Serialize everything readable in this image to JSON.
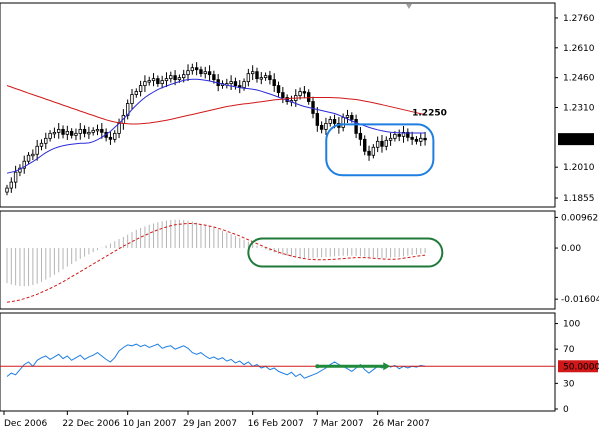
{
  "colors": {
    "ma_fast": "#2a2ad8",
    "ma_slow": "#d01818",
    "candle": "#000000",
    "macd_hist": "#b4b4b4",
    "macd_signal": "#d01818",
    "rsi_line": "#1e7fe0",
    "rsi_level": "#d01818",
    "price_highlight": "#1e7fe0",
    "macd_highlight": "#1f7a3a",
    "rsi_arrow": "#1f8a3a"
  },
  "chart_data": [
    {
      "type": "candlestick",
      "panel": "price",
      "ylim": [
        1.182,
        1.282
      ],
      "y_ticks": [
        {
          "value": 1.276,
          "label": "1.2760"
        },
        {
          "value": 1.261,
          "label": "1.2610"
        },
        {
          "value": 1.246,
          "label": "1.2460"
        },
        {
          "value": 1.231,
          "label": "1.2310"
        },
        {
          "value": 1.201,
          "label": "1.2010"
        },
        {
          "value": 1.1855,
          "label": "1.1855"
        }
      ],
      "current_price": {
        "value": 1.2151,
        "label": "1.2151"
      },
      "annotation": {
        "text": "1.2250",
        "value": 1.225
      },
      "close": [
        1.1905,
        1.1935,
        1.1985,
        1.2005,
        1.204,
        1.207,
        1.2075,
        1.2115,
        1.213,
        1.2155,
        1.218,
        1.2185,
        1.22,
        1.2175,
        1.219,
        1.217,
        1.218,
        1.22,
        1.218,
        1.2185,
        1.2195,
        1.22,
        1.2185,
        1.216,
        1.215,
        1.218,
        1.223,
        1.227,
        1.233,
        1.2375,
        1.239,
        1.242,
        1.244,
        1.2445,
        1.2455,
        1.243,
        1.2445,
        1.2455,
        1.247,
        1.245,
        1.246,
        1.2475,
        1.2495,
        1.251,
        1.25,
        1.248,
        1.249,
        1.2475,
        1.245,
        1.242,
        1.243,
        1.243,
        1.244,
        1.242,
        1.241,
        1.244,
        1.248,
        1.249,
        1.2455,
        1.246,
        1.247,
        1.245,
        1.242,
        1.2385,
        1.236,
        1.234,
        1.2345,
        1.237,
        1.239,
        1.2385,
        1.234,
        1.228,
        1.222,
        1.22,
        1.223,
        1.225,
        1.223,
        1.221,
        1.226,
        1.227,
        1.225,
        1.218,
        1.215,
        1.209,
        1.207,
        1.211,
        1.214,
        1.2115,
        1.2145,
        1.2155,
        1.2175,
        1.2165,
        1.2185,
        1.216,
        1.215,
        1.214,
        1.2155,
        1.2151
      ],
      "series": [
        {
          "name": "",
          "values": [
            1.198,
            1.1985,
            1.199,
            1.2,
            1.2012,
            1.2025,
            1.2038,
            1.2052,
            1.2068,
            1.2083,
            1.2095,
            1.2105,
            1.2112,
            1.2118,
            1.2122,
            1.2125,
            1.2128,
            1.213,
            1.213,
            1.2132,
            1.2138,
            1.2148,
            1.216,
            1.2175,
            1.219,
            1.221,
            1.223,
            1.2252,
            1.2275,
            1.23,
            1.2322,
            1.2342,
            1.236,
            1.2375,
            1.2388,
            1.24,
            1.241,
            1.2418,
            1.2426,
            1.2433,
            1.244,
            1.2446,
            1.245,
            1.2452,
            1.2452,
            1.245,
            1.2447,
            1.2443,
            1.2438,
            1.2433,
            1.2428,
            1.2422,
            1.2418,
            1.2414,
            1.241,
            1.2407,
            1.2405,
            1.2402,
            1.2398,
            1.2392,
            1.2385,
            1.2378,
            1.237,
            1.2362,
            1.2354,
            1.2346,
            1.2338,
            1.233,
            1.2322,
            1.2315,
            1.231,
            1.2305,
            1.23,
            1.2295,
            1.229,
            1.2285,
            1.228,
            1.2272,
            1.2262,
            1.2252,
            1.2242,
            1.2234,
            1.2226,
            1.2218,
            1.221,
            1.2204,
            1.2198,
            1.2193,
            1.2189,
            1.2186,
            1.2184,
            1.2183,
            1.2182,
            1.2182,
            1.2182,
            1.2182,
            1.2182,
            1.2182
          ]
        },
        {
          "name": "",
          "values": [
            1.242,
            1.2413,
            1.2405,
            1.2398,
            1.239,
            1.2382,
            1.2375,
            1.2367,
            1.236,
            1.2352,
            1.2345,
            1.2337,
            1.233,
            1.2322,
            1.2315,
            1.2307,
            1.23,
            1.2292,
            1.2285,
            1.2277,
            1.227,
            1.2262,
            1.2255,
            1.2248,
            1.2242,
            1.2237,
            1.2233,
            1.223,
            1.2228,
            1.2227,
            1.2227,
            1.2228,
            1.223,
            1.2232,
            1.2235,
            1.2238,
            1.2242,
            1.2246,
            1.225,
            1.2255,
            1.226,
            1.2265,
            1.227,
            1.2275,
            1.228,
            1.2285,
            1.229,
            1.2295,
            1.23,
            1.2305,
            1.231,
            1.2315,
            1.2318,
            1.2322,
            1.2325,
            1.2328,
            1.233,
            1.2333,
            1.2336,
            1.2339,
            1.2342,
            1.2345,
            1.2348,
            1.235,
            1.2352,
            1.2354,
            1.2356,
            1.2357,
            1.2358,
            1.2358,
            1.2359,
            1.236,
            1.236,
            1.236,
            1.236,
            1.236,
            1.2359,
            1.2358,
            1.2356,
            1.2354,
            1.2352,
            1.235,
            1.2346,
            1.2342,
            1.2338,
            1.2334,
            1.2329,
            1.2324,
            1.2319,
            1.2314,
            1.2309,
            1.2304,
            1.2299,
            1.2294,
            1.2289,
            1.2284,
            1.2279,
            1.2274
          ]
        }
      ]
    },
    {
      "type": "macd",
      "panel": "macd",
      "ylim": [
        -0.0185,
        0.011
      ],
      "y_ticks": [
        {
          "value": 0.00962,
          "label": "0.00962"
        },
        {
          "value": 0.0,
          "label": "0.00"
        },
        {
          "value": -0.01604,
          "label": "-0.01604"
        }
      ],
      "histogram": [
        -0.011,
        -0.0114,
        -0.0117,
        -0.0119,
        -0.012,
        -0.0119,
        -0.0116,
        -0.0112,
        -0.0106,
        -0.0099,
        -0.0092,
        -0.0084,
        -0.0076,
        -0.0067,
        -0.0058,
        -0.005,
        -0.0042,
        -0.0034,
        -0.0027,
        -0.002,
        -0.0013,
        -0.0006,
        0.0001,
        0.0008,
        0.0014,
        0.0021,
        0.0028,
        0.0035,
        0.0042,
        0.005,
        0.0057,
        0.0063,
        0.0068,
        0.0073,
        0.0077,
        0.0081,
        0.0084,
        0.0086,
        0.0088,
        0.0089,
        0.0089,
        0.0088,
        0.0086,
        0.0083,
        0.008,
        0.0076,
        0.0072,
        0.0068,
        0.0064,
        0.0059,
        0.0054,
        0.0049,
        0.0044,
        0.0038,
        0.0032,
        0.0026,
        0.002,
        0.0014,
        0.0008,
        0.0002,
        -0.0004,
        -0.0009,
        -0.0014,
        -0.0018,
        -0.0022,
        -0.0025,
        -0.0027,
        -0.0029,
        -0.003,
        -0.0031,
        -0.0031,
        -0.0031,
        -0.003,
        -0.0029,
        -0.0028,
        -0.0027,
        -0.0026,
        -0.0025,
        -0.0024,
        -0.0024,
        -0.0024,
        -0.0025,
        -0.0026,
        -0.0027,
        -0.0028,
        -0.0029,
        -0.003,
        -0.0031,
        -0.0031,
        -0.003,
        -0.0029,
        -0.0028,
        -0.0026,
        -0.0024,
        -0.0022,
        -0.002,
        -0.0018,
        -0.0016
      ],
      "signal": [
        -0.017,
        -0.0168,
        -0.0166,
        -0.0163,
        -0.0159,
        -0.0155,
        -0.015,
        -0.0145,
        -0.0139,
        -0.0133,
        -0.0127,
        -0.012,
        -0.0113,
        -0.0106,
        -0.0098,
        -0.009,
        -0.0082,
        -0.0074,
        -0.0066,
        -0.0058,
        -0.005,
        -0.0042,
        -0.0034,
        -0.0026,
        -0.0018,
        -0.001,
        -0.0002,
        0.0006,
        0.0013,
        0.002,
        0.0027,
        0.0034,
        0.004,
        0.0046,
        0.0052,
        0.0057,
        0.0062,
        0.0066,
        0.007,
        0.0073,
        0.0075,
        0.0076,
        0.0077,
        0.0077,
        0.0076,
        0.0074,
        0.0072,
        0.0069,
        0.0066,
        0.0062,
        0.0058,
        0.0053,
        0.0048,
        0.0043,
        0.0038,
        0.0032,
        0.0026,
        0.002,
        0.0014,
        0.0008,
        0.0002,
        -0.0003,
        -0.0008,
        -0.0013,
        -0.0017,
        -0.0021,
        -0.0025,
        -0.0028,
        -0.0031,
        -0.0033,
        -0.0035,
        -0.0036,
        -0.0037,
        -0.0037,
        -0.0037,
        -0.0036,
        -0.0035,
        -0.0034,
        -0.0033,
        -0.0032,
        -0.0031,
        -0.003,
        -0.003,
        -0.003,
        -0.0031,
        -0.0032,
        -0.0033,
        -0.0034,
        -0.0035,
        -0.0035,
        -0.0035,
        -0.0034,
        -0.0032,
        -0.003,
        -0.0028,
        -0.0026,
        -0.0024,
        -0.0022
      ]
    },
    {
      "type": "line",
      "panel": "rsi",
      "ylim": [
        0,
        110
      ],
      "y_ticks": [
        {
          "value": 100,
          "label": "100"
        },
        {
          "value": 70,
          "label": "70"
        },
        {
          "value": 30,
          "label": "30"
        },
        {
          "value": 0,
          "label": "0"
        }
      ],
      "level": {
        "value": 50,
        "label": "50.0000"
      },
      "x_ticks": [
        {
          "index": 0,
          "label": "Dec 2006"
        },
        {
          "index": 14,
          "label": "22 Dec 2006"
        },
        {
          "index": 28,
          "label": "10 Jan 2007"
        },
        {
          "index": 42,
          "label": "29 Jan 2007"
        },
        {
          "index": 57,
          "label": "16 Feb 2007"
        },
        {
          "index": 72,
          "label": "7 Mar 2007"
        },
        {
          "index": 86,
          "label": "26 Mar 2007"
        }
      ],
      "values": [
        38,
        42,
        40,
        46,
        52,
        55,
        50,
        57,
        60,
        62,
        58,
        61,
        64,
        59,
        62,
        57,
        60,
        63,
        58,
        61,
        63,
        66,
        62,
        58,
        55,
        60,
        68,
        72,
        75,
        74,
        76,
        73,
        75,
        72,
        74,
        76,
        71,
        73,
        74,
        70,
        72,
        74,
        71,
        66,
        64,
        66,
        62,
        59,
        61,
        58,
        60,
        56,
        58,
        54,
        56,
        52,
        55,
        50,
        52,
        48,
        50,
        46,
        48,
        44,
        42,
        40,
        43,
        38,
        41,
        36,
        38,
        40,
        42,
        45,
        48,
        52,
        55,
        52,
        50,
        47,
        44,
        48,
        52,
        46,
        42,
        46,
        50,
        48,
        52,
        49,
        51,
        47,
        50,
        48,
        50,
        49,
        51,
        50
      ],
      "arrow": {
        "from_index": 72,
        "to_index": 88,
        "value": 50
      }
    }
  ]
}
